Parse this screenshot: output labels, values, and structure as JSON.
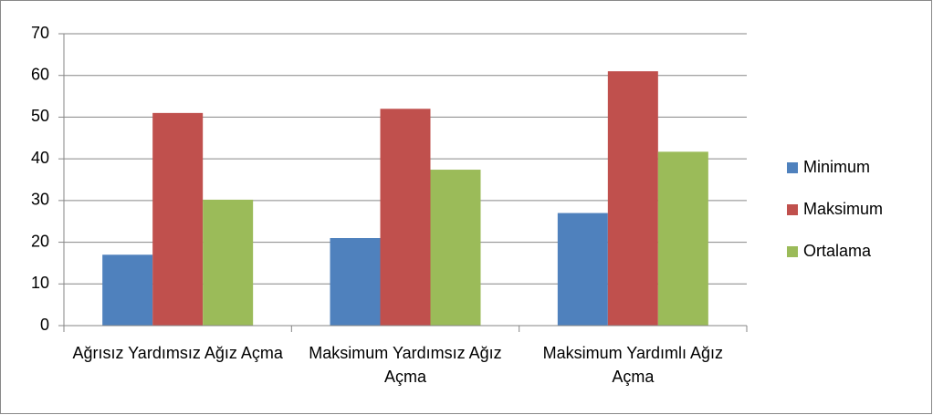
{
  "chart_data": {
    "type": "bar",
    "categories": [
      "Ağrısız Yardımsız Ağız Açma",
      "Maksimum Yardımsız Ağız Açma",
      "Maksimum Yardımlı Ağız Açma"
    ],
    "series": [
      {
        "name": "Minimum",
        "color": "#4f81bd",
        "values": [
          17,
          21,
          27
        ]
      },
      {
        "name": "Maksimum",
        "color": "#c0504d",
        "values": [
          51,
          52,
          61
        ]
      },
      {
        "name": "Ortalama",
        "color": "#9bbb59",
        "values": [
          30.2,
          37.4,
          41.7
        ]
      }
    ],
    "ylim": [
      0,
      70
    ],
    "yticks": [
      0,
      10,
      20,
      30,
      40,
      50,
      60,
      70
    ],
    "grid": true,
    "legend": "right"
  }
}
